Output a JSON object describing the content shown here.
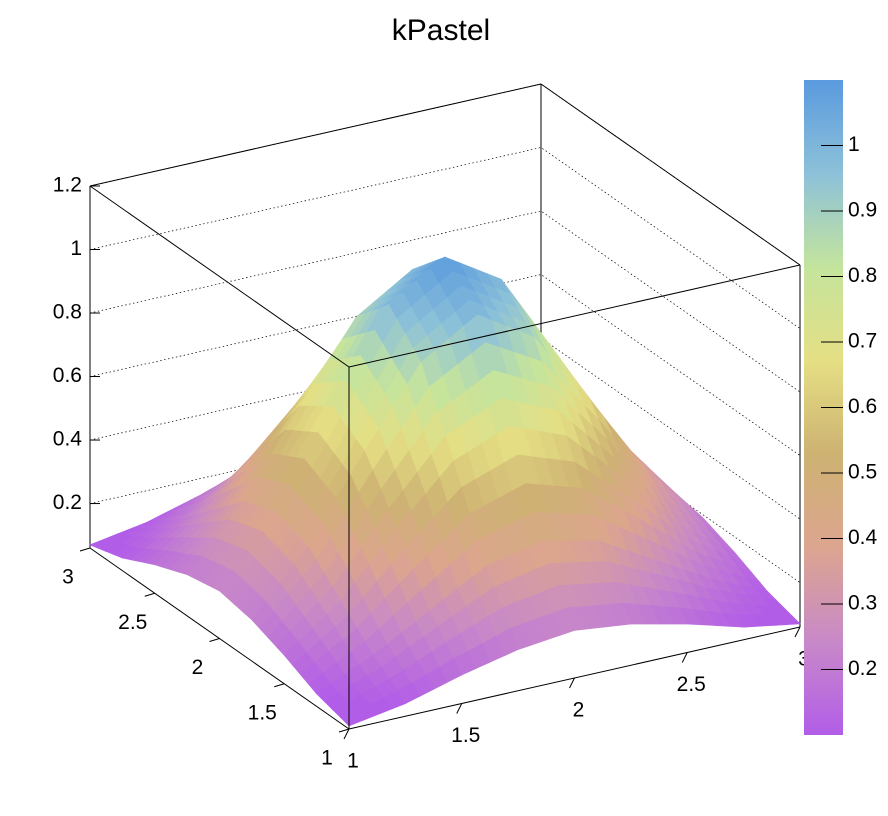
{
  "chart_data": {
    "type": "surface",
    "title": "kPastel",
    "x": [
      1,
      1.25,
      1.5,
      1.75,
      2,
      2.25,
      2.5,
      2.75,
      3
    ],
    "y": [
      1,
      1.25,
      1.5,
      1.75,
      2,
      2.25,
      2.5,
      2.75,
      3
    ],
    "z": [
      [
        0.07,
        0.1,
        0.15,
        0.19,
        0.21,
        0.19,
        0.15,
        0.1,
        0.07
      ],
      [
        0.1,
        0.18,
        0.28,
        0.38,
        0.42,
        0.38,
        0.28,
        0.18,
        0.1
      ],
      [
        0.15,
        0.28,
        0.47,
        0.64,
        0.71,
        0.64,
        0.47,
        0.28,
        0.15
      ],
      [
        0.19,
        0.38,
        0.64,
        0.88,
        0.99,
        0.88,
        0.64,
        0.38,
        0.19
      ],
      [
        0.21,
        0.42,
        0.71,
        0.99,
        1.1,
        0.99,
        0.71,
        0.42,
        0.21
      ],
      [
        0.19,
        0.38,
        0.64,
        0.88,
        0.99,
        0.88,
        0.64,
        0.38,
        0.19
      ],
      [
        0.15,
        0.28,
        0.47,
        0.64,
        0.71,
        0.64,
        0.47,
        0.28,
        0.15
      ],
      [
        0.1,
        0.18,
        0.28,
        0.38,
        0.42,
        0.38,
        0.28,
        0.18,
        0.1
      ],
      [
        0.07,
        0.1,
        0.15,
        0.19,
        0.21,
        0.19,
        0.15,
        0.1,
        0.07
      ]
    ],
    "xlim": [
      1,
      3
    ],
    "ylim": [
      1,
      3
    ],
    "zlim": [
      0.06,
      1.2
    ],
    "xticks": [
      1,
      1.5,
      2,
      2.5,
      3
    ],
    "yticks": [
      1,
      1.5,
      2,
      2.5,
      3
    ],
    "zticks": [
      0.2,
      0.4,
      0.6,
      0.8,
      1,
      1.2
    ],
    "grid": true,
    "palette": [
      "#b25de8",
      "#c889c8",
      "#dca58f",
      "#cdb272",
      "#e5df84",
      "#c4e49d",
      "#8dc1d9",
      "#5a9ade"
    ],
    "colorbar": {
      "lim": [
        0.1,
        1.1
      ],
      "ticks": [
        0.2,
        0.3,
        0.4,
        0.5,
        0.6,
        0.7,
        0.8,
        0.9,
        1
      ]
    }
  }
}
